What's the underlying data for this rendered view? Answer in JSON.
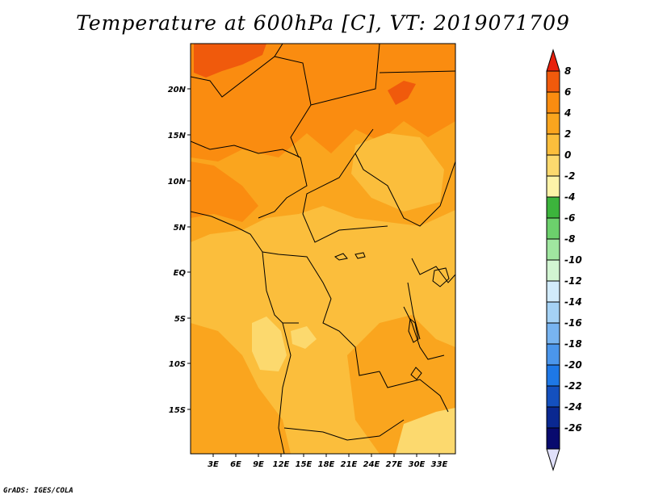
{
  "title": "Temperature at 600hPa [C], VT: 2019071709",
  "footer": "GrADS: IGES/COLA",
  "map": {
    "lat_labels": [
      "20N",
      "15N",
      "10N",
      "5N",
      "EQ",
      "5S",
      "10S",
      "15S"
    ],
    "lon_labels": [
      "3E",
      "6E",
      "9E",
      "12E",
      "15E",
      "18E",
      "21E",
      "24E",
      "27E",
      "30E",
      "33E"
    ]
  },
  "colorbar": {
    "labels": [
      "8",
      "6",
      "4",
      "2",
      "0",
      "-2",
      "-4",
      "-6",
      "-8",
      "-10",
      "-12",
      "-14",
      "-16",
      "-18",
      "-20",
      "-22",
      "-24",
      "-26"
    ],
    "colors": [
      "#e8200c",
      "#f05a0c",
      "#fa8c10",
      "#faa51e",
      "#fbbe3c",
      "#fcd96e",
      "#fdf3a8",
      "#3cb43c",
      "#6cd06c",
      "#a0e6a0",
      "#d2f5d2",
      "#d2ebfb",
      "#a5d2f5",
      "#78b4f0",
      "#4b96eb",
      "#1e78e6",
      "#1450be",
      "#0a2891",
      "#080a6e",
      "#e0e0fa"
    ]
  },
  "field_colors": {
    "above_6": "#e8200c",
    "4_to_6": "#f05a0c",
    "2_to_4": "#fa8c10",
    "0_to_2": "#faa51e",
    "minus2_to_0": "#fbbe3c",
    "minus4_to_minus2": "#fcd96e"
  }
}
